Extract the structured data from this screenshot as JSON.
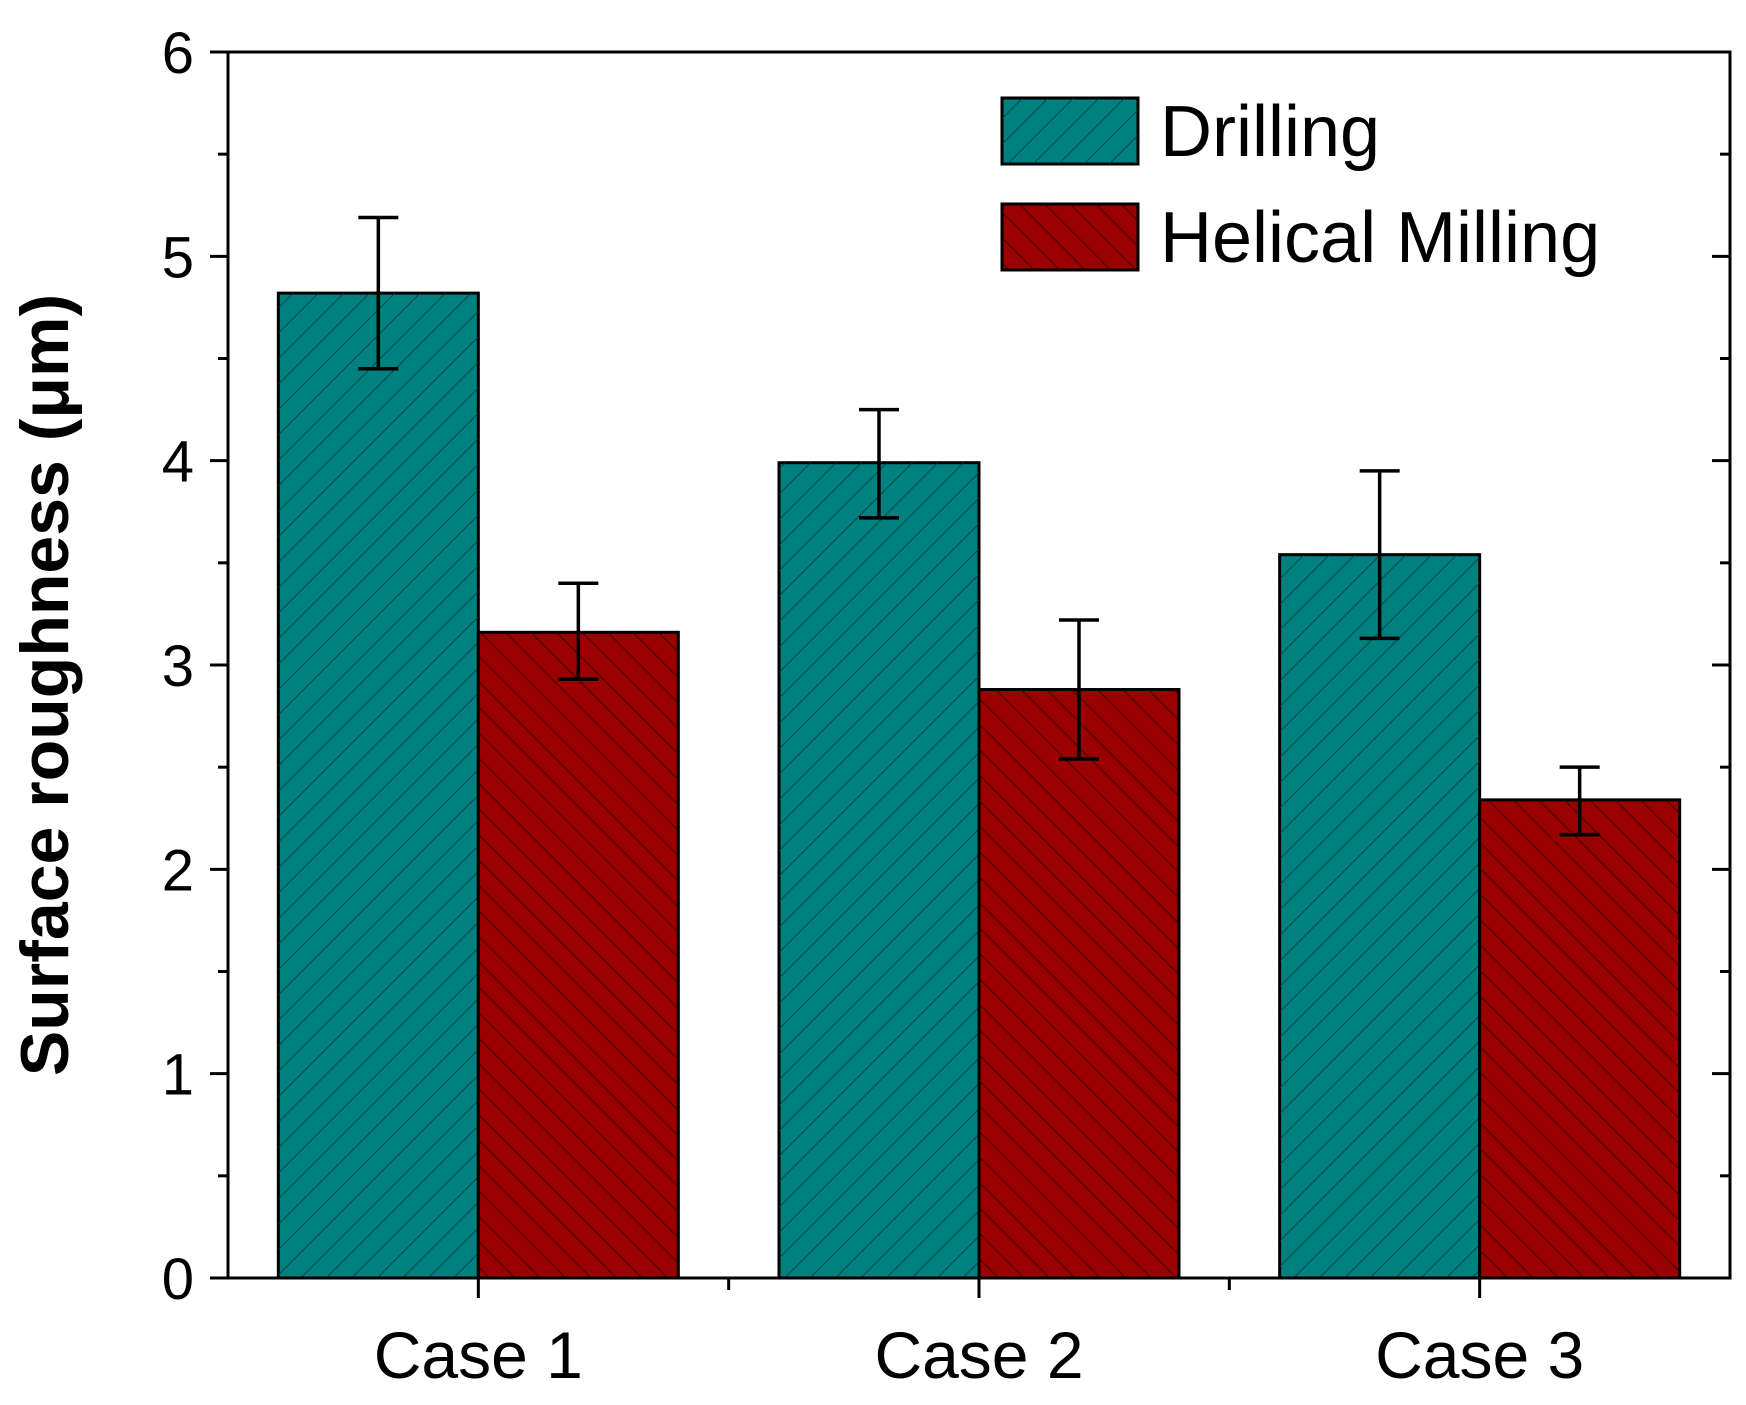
{
  "chart_data": {
    "type": "bar",
    "title": "",
    "xlabel": "",
    "ylabel": "Surface roughness (μm)",
    "ylim": [
      0,
      6
    ],
    "yticks": [
      0,
      1,
      2,
      3,
      4,
      5,
      6
    ],
    "categories": [
      "Case 1",
      "Case 2",
      "Case 3"
    ],
    "series": [
      {
        "name": "Drilling",
        "color": "#00807F",
        "pattern": "diagonal-up",
        "values": [
          4.82,
          3.99,
          3.54
        ],
        "error": [
          [
            4.45,
            5.19
          ],
          [
            3.72,
            4.25
          ],
          [
            3.13,
            3.95
          ]
        ]
      },
      {
        "name": "Helical Milling",
        "color": "#9A0000",
        "pattern": "diagonal-down",
        "values": [
          3.16,
          2.88,
          2.34
        ],
        "error": [
          [
            2.93,
            3.4
          ],
          [
            2.54,
            3.22
          ],
          [
            2.17,
            2.5
          ]
        ]
      }
    ],
    "legend_position": "top-right",
    "grid": false
  }
}
